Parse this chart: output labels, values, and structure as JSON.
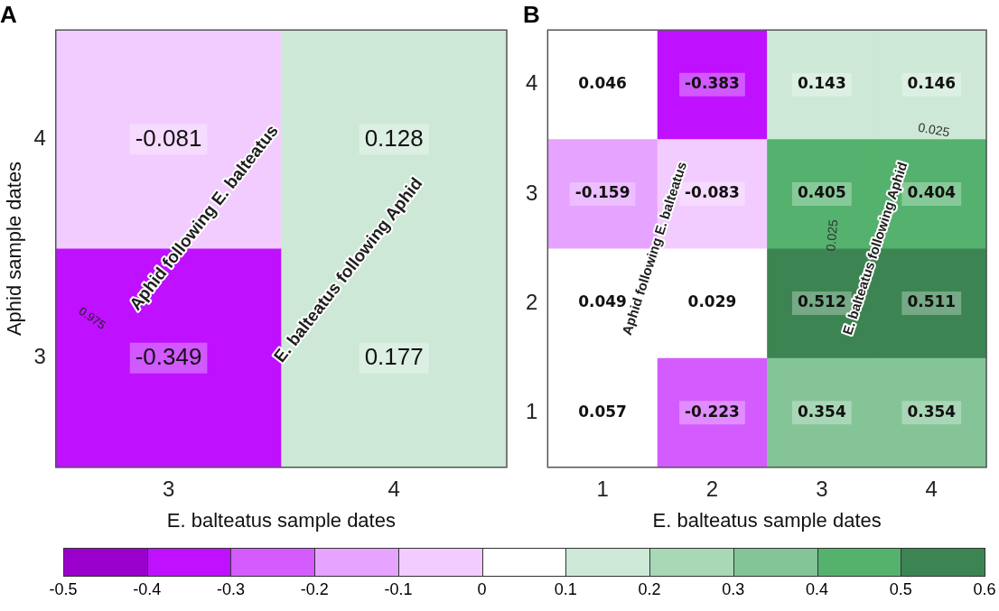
{
  "chart_data": [
    {
      "type": "heatmap",
      "title": "A",
      "xlabel": "E. balteatus sample dates",
      "ylabel": "Aphid sample dates",
      "categories": [
        "3",
        "4"
      ],
      "y_categories": [
        "4",
        "3"
      ],
      "cells": [
        [
          -0.081,
          0.128
        ],
        [
          -0.349,
          0.177
        ]
      ],
      "data_labels": true,
      "annotations": [
        "Aphid following E. balteatus",
        "E. balteatus following Aphid",
        "0.975"
      ]
    },
    {
      "type": "heatmap",
      "title": "B",
      "xlabel": "E. balteatus sample dates",
      "categories": [
        "1",
        "2",
        "3",
        "4"
      ],
      "y_categories": [
        "4",
        "3",
        "2",
        "1"
      ],
      "cells": [
        [
          0.046,
          -0.383,
          0.143,
          0.146
        ],
        [
          -0.159,
          -0.083,
          0.405,
          0.404
        ],
        [
          0.049,
          0.029,
          0.512,
          0.511
        ],
        [
          0.057,
          -0.223,
          0.354,
          0.354
        ]
      ],
      "data_labels": true,
      "clim": [
        -0.5,
        0.6
      ],
      "cticks": [
        -0.5,
        -0.4,
        -0.3,
        -0.2,
        -0.1,
        0,
        0.1,
        0.2,
        0.3,
        0.4,
        0.5,
        0.6
      ],
      "colors": [
        "#9a00cc",
        "#bf10ff",
        "#d45cff",
        "#e6a3ff",
        "#f2ccff",
        "#ffffff",
        "#cde8d7",
        "#a9d8b6",
        "#84c497",
        "#55b26e",
        "#3c8552"
      ],
      "annotations": [
        "Aphid following E. balteatus",
        "E. balteatus following Aphid",
        "0.025",
        "0.025"
      ]
    }
  ]
}
